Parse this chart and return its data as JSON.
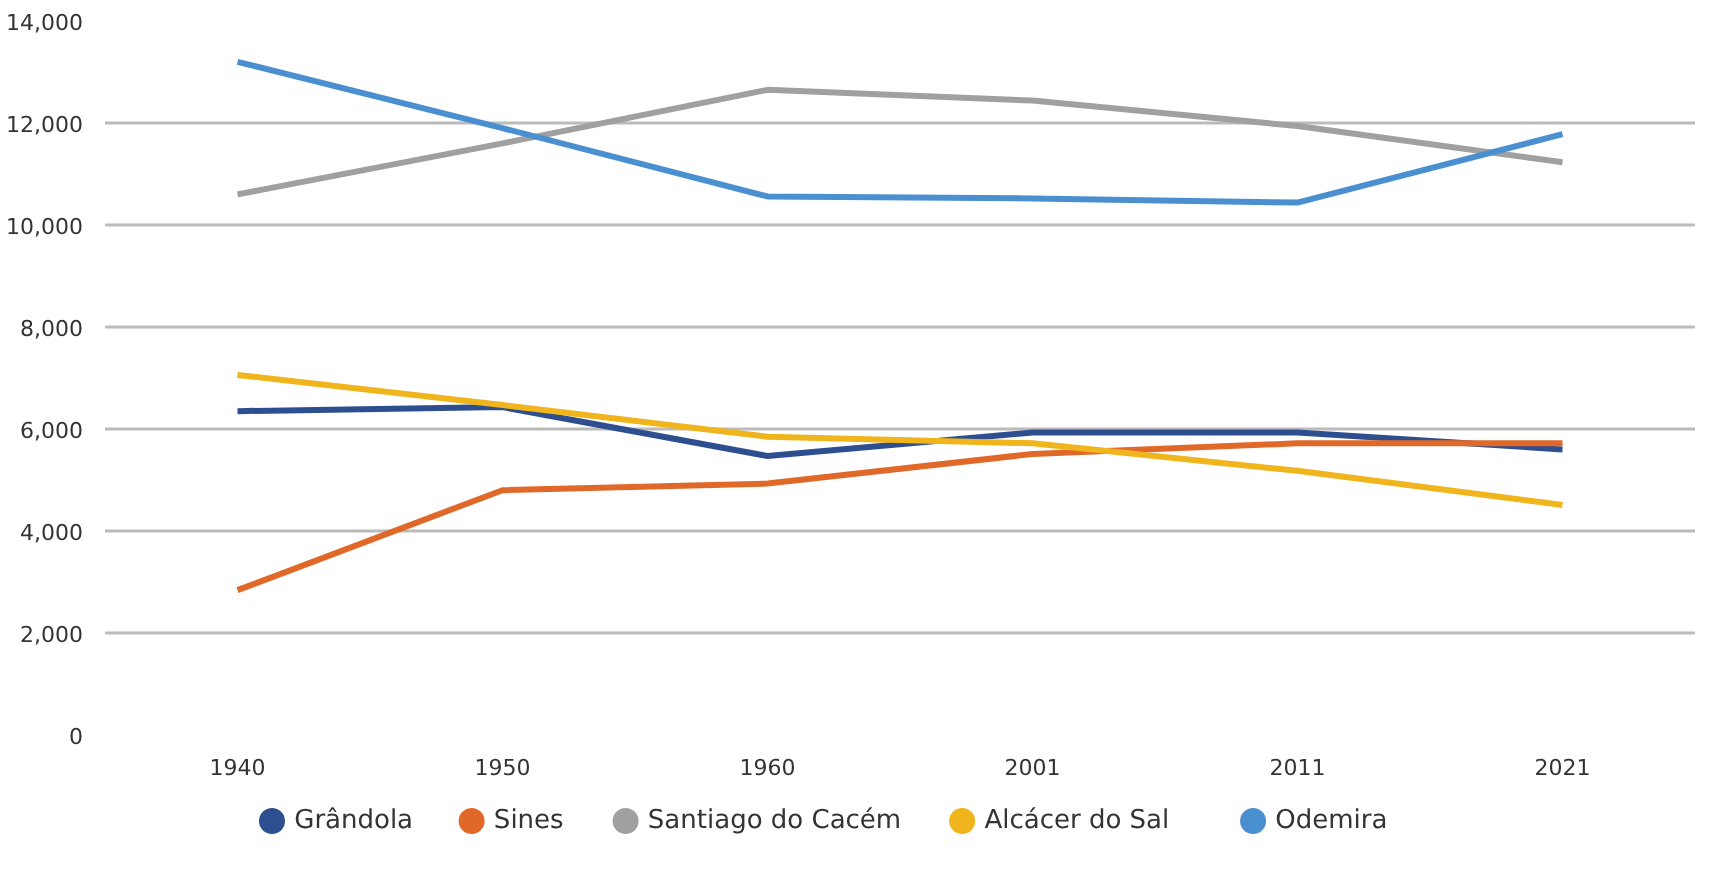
{
  "chart_data": {
    "type": "line",
    "categories": [
      "1940",
      "1950",
      "1960",
      "2001",
      "2011",
      "2021"
    ],
    "series": [
      {
        "name": "Grândola",
        "color": "#2e4f8f",
        "values": [
          6350,
          6430,
          5470,
          5930,
          5930,
          5600
        ]
      },
      {
        "name": "Sines",
        "color": "#e0692a",
        "values": [
          2840,
          4800,
          4930,
          5510,
          5720,
          5720
        ]
      },
      {
        "name": "Santiago do Cacém",
        "color": "#a0a0a0",
        "values": [
          10600,
          11600,
          12650,
          12440,
          11940,
          11230
        ]
      },
      {
        "name": "Alcácer do Sal",
        "color": "#f0b41c",
        "values": [
          7060,
          6470,
          5850,
          5720,
          5180,
          4510
        ]
      },
      {
        "name": "Odemira",
        "color": "#4a8fd0",
        "values": [
          13200,
          11900,
          10560,
          10520,
          10440,
          11780
        ]
      }
    ],
    "ylim": [
      0,
      14000
    ],
    "yticks": [
      {
        "value": 0,
        "label": "0"
      },
      {
        "value": 2000,
        "label": "2,000"
      },
      {
        "value": 4000,
        "label": "4,000"
      },
      {
        "value": 6000,
        "label": "6,000"
      },
      {
        "value": 8000,
        "label": "8,000"
      },
      {
        "value": 10000,
        "label": "10,000"
      },
      {
        "value": 12000,
        "label": "12,000"
      },
      {
        "value": 14000,
        "label": "14,000"
      }
    ],
    "grid": "y",
    "legend": "bottom",
    "line_style": "solid"
  }
}
